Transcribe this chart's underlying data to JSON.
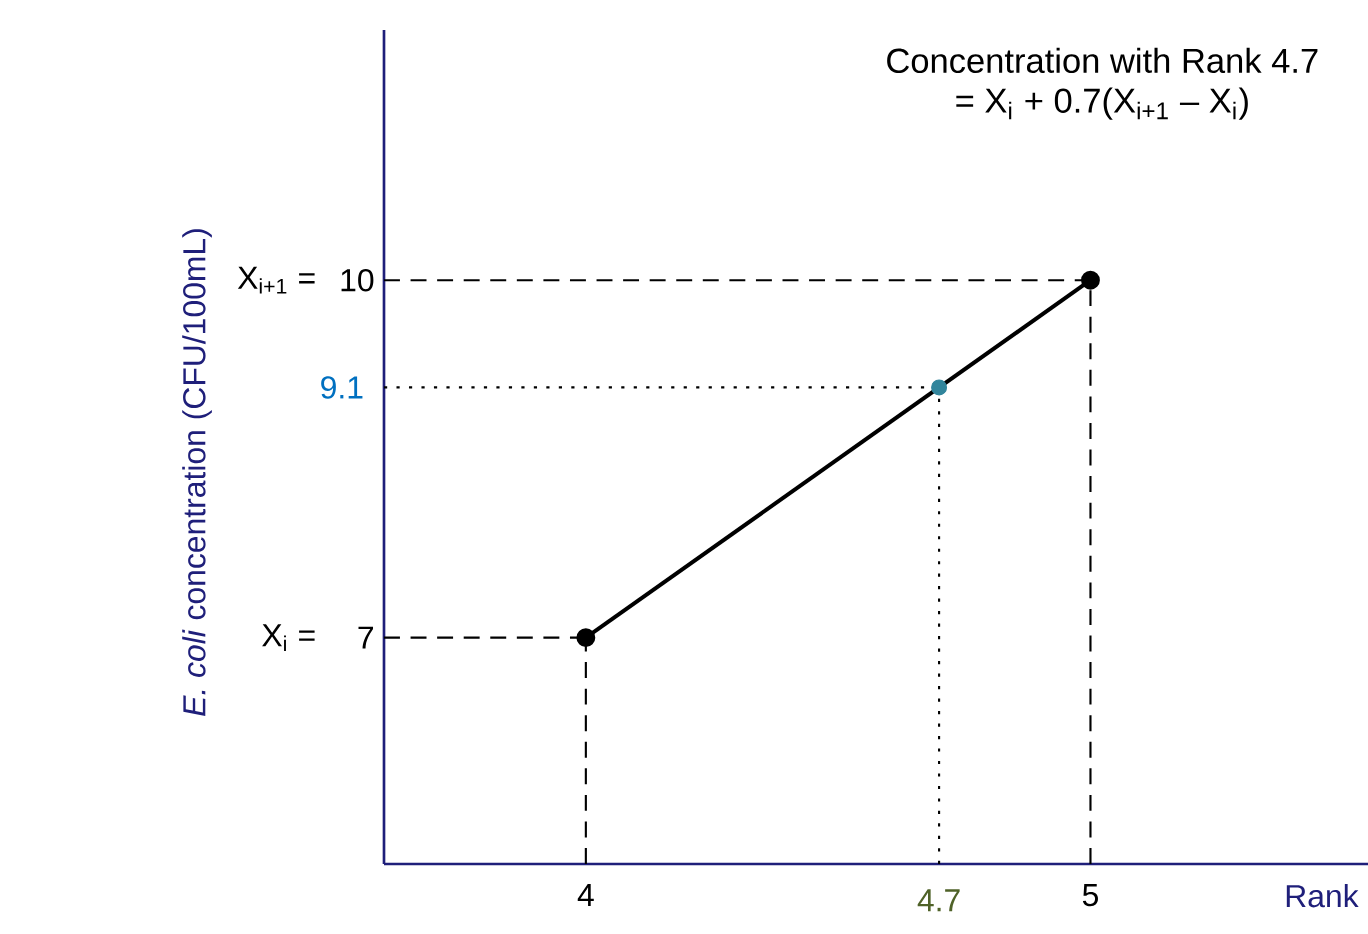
{
  "chart_data": {
    "type": "line",
    "title": "Concentration with Rank 4.7",
    "subtitle": "= X$_{i}$ + 0.7(X$_{i+1}$ – X$_{i}$)",
    "xlabel": "Rank",
    "ylabel": "*E. coli* concentration (CFU/100mL)",
    "x": [
      4,
      5
    ],
    "series": [
      {
        "color": "#000000",
        "values": [
          7,
          10
        ],
        "marker": "circle"
      },
      {
        "type": "scatter",
        "color": "#31859c",
        "x": [
          4.7
        ],
        "values": [
          9.1
        ],
        "marker": "circle"
      }
    ],
    "xlim": [
      3.6,
      5.55
    ],
    "ylim": [
      5.1,
      12.1
    ],
    "xticks": [
      4,
      5
    ],
    "yticks": [
      7,
      10
    ],
    "annotations": [
      "X$_{i}$ =",
      "X$_{i+1}$ ="
    ],
    "ref_lines": [
      {
        "axis": "x",
        "value": 4,
        "line_style": "dashed"
      },
      {
        "axis": "x",
        "value": 5,
        "line_style": "dashed"
      },
      {
        "axis": "y",
        "value": 7,
        "line_style": "dashed"
      },
      {
        "axis": "y",
        "value": 10,
        "line_style": "dashed"
      },
      {
        "axis": "x",
        "value": 4.7,
        "label": "4.7",
        "line_style": "dotted"
      },
      {
        "axis": "y",
        "value": 9.1,
        "label": "9.1",
        "line_style": "dotted"
      }
    ]
  }
}
